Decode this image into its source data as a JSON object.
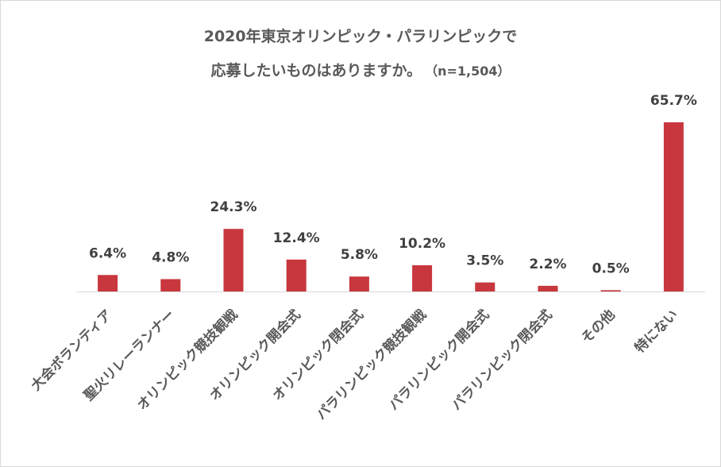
{
  "chart_data": {
    "type": "bar",
    "title_line1": "2020年東京オリンピック・パラリンピックで",
    "title_line2": "応募したいものはありますか。",
    "subtitle": "（n=1,504）",
    "categories": [
      "大会ボランティア",
      "聖火リレーランナー",
      "オリンピック競技観戦",
      "オリンピック開会式",
      "オリンピック閉会式",
      "パラリンピック競技観戦",
      "パラリンピック開会式",
      "パラリンピック閉会式",
      "その他",
      "特にない"
    ],
    "values": [
      6.4,
      4.8,
      24.3,
      12.4,
      5.8,
      10.2,
      3.5,
      2.2,
      0.5,
      65.7
    ],
    "value_labels": [
      "6.4%",
      "4.8%",
      "24.3%",
      "12.4%",
      "5.8%",
      "10.2%",
      "3.5%",
      "2.2%",
      "0.5%",
      "65.7%"
    ],
    "ylim": [
      0,
      65.7
    ],
    "bar_color": "#c8373d",
    "grid": false,
    "legend": "none"
  }
}
